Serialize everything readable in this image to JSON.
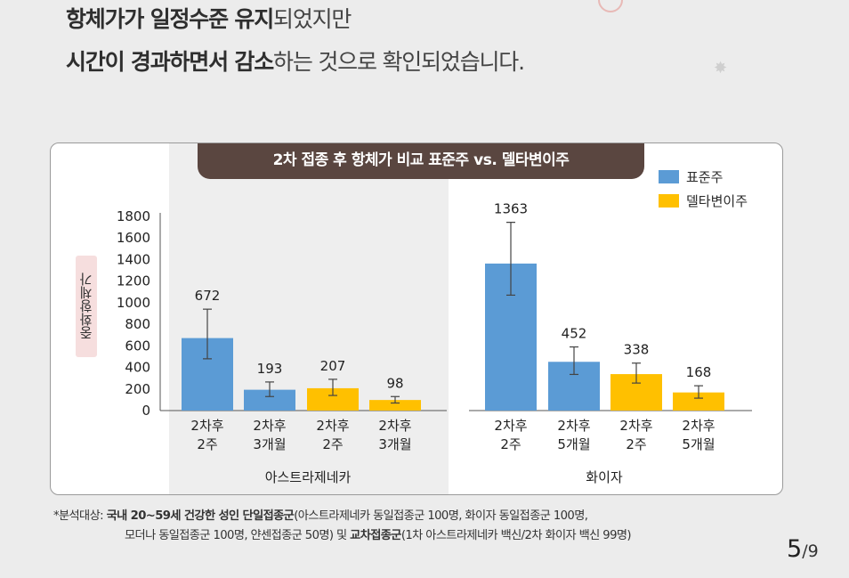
{
  "headline": {
    "line1_bold": "항체가가 일정수준 유지",
    "line1_rest": "되었지만",
    "line2_bold": "시간이 경과하면서 감소",
    "line2_rest": "하는 것으로 확인되었습니다."
  },
  "chart_data": {
    "type": "bar",
    "title": "2차 접종 후 항체가 비교 표준주 vs. 델타변이주",
    "ylabel": "중화항체가",
    "ylim": [
      0,
      1800
    ],
    "yticks": [
      "0",
      "200",
      "400",
      "600",
      "800",
      "1000",
      "1200",
      "1400",
      "1600",
      "1800"
    ],
    "legend_position": "top-right",
    "legend": [
      {
        "name": "표준주",
        "color": "#5b9bd5"
      },
      {
        "name": "델타변이주",
        "color": "#ffc000"
      }
    ],
    "groups": [
      {
        "name": "아스트라제네카",
        "bars": [
          {
            "line1": "2차후",
            "line2": "2주",
            "series": "표준주",
            "value": 672,
            "err_low": 480,
            "err_high": 940
          },
          {
            "line1": "2차후",
            "line2": "3개월",
            "series": "표준주",
            "value": 193,
            "err_low": 130,
            "err_high": 265
          },
          {
            "line1": "2차후",
            "line2": "2주",
            "series": "델타변이주",
            "value": 207,
            "err_low": 140,
            "err_high": 290
          },
          {
            "line1": "2차후",
            "line2": "3개월",
            "series": "델타변이주",
            "value": 98,
            "err_low": 70,
            "err_high": 130
          }
        ]
      },
      {
        "name": "화이자",
        "bars": [
          {
            "line1": "2차후",
            "line2": "2주",
            "series": "표준주",
            "value": 1363,
            "err_low": 1070,
            "err_high": 1745
          },
          {
            "line1": "2차후",
            "line2": "5개월",
            "series": "표준주",
            "value": 452,
            "err_low": 335,
            "err_high": 590
          },
          {
            "line1": "2차후",
            "line2": "2주",
            "series": "델타변이주",
            "value": 338,
            "err_low": 255,
            "err_high": 440
          },
          {
            "line1": "2차후",
            "line2": "5개월",
            "series": "델타변이주",
            "value": 168,
            "err_low": 115,
            "err_high": 230
          }
        ]
      }
    ]
  },
  "footnote": {
    "prefix": "*분석대상: ",
    "b1": "국내 20~59세 건강한 성인 단일접종군",
    "t1": "(아스트라제네카 동일접종군 100명, 화이자 동일접종군 100명,",
    "t2": "모더나 동일접종군 100명, 얀센접종군 50명) 및 ",
    "b2": "교차접종군",
    "t3": "(1차 아스트라제네카 백신/2차 화이자 백신 99명)"
  },
  "page": {
    "current": "5",
    "total": "/9"
  }
}
